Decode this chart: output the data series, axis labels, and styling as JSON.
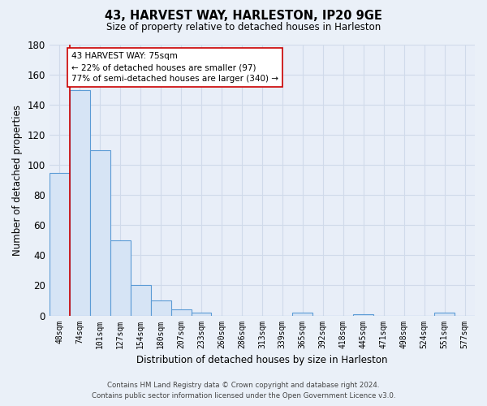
{
  "title": "43, HARVEST WAY, HARLESTON, IP20 9GE",
  "subtitle": "Size of property relative to detached houses in Harleston",
  "xlabel": "Distribution of detached houses by size in Harleston",
  "ylabel": "Number of detached properties",
  "bar_labels": [
    "48sqm",
    "74sqm",
    "101sqm",
    "127sqm",
    "154sqm",
    "180sqm",
    "207sqm",
    "233sqm",
    "260sqm",
    "286sqm",
    "313sqm",
    "339sqm",
    "365sqm",
    "392sqm",
    "418sqm",
    "445sqm",
    "471sqm",
    "498sqm",
    "524sqm",
    "551sqm",
    "577sqm"
  ],
  "bar_heights": [
    95,
    150,
    110,
    50,
    20,
    10,
    4,
    2,
    0,
    0,
    0,
    0,
    2,
    0,
    0,
    1,
    0,
    0,
    0,
    2,
    0
  ],
  "bar_color": "#d6e4f5",
  "bar_edgecolor": "#5b9bd5",
  "vline_color": "#cc0000",
  "annotation_title": "43 HARVEST WAY: 75sqm",
  "annotation_line1": "← 22% of detached houses are smaller (97)",
  "annotation_line2": "77% of semi-detached houses are larger (340) →",
  "annotation_box_color": "#ffffff",
  "annotation_box_edge": "#cc0000",
  "ylim": [
    0,
    180
  ],
  "yticks": [
    0,
    20,
    40,
    60,
    80,
    100,
    120,
    140,
    160,
    180
  ],
  "footer_line1": "Contains HM Land Registry data © Crown copyright and database right 2024.",
  "footer_line2": "Contains public sector information licensed under the Open Government Licence v3.0.",
  "bg_color": "#eaf0f8",
  "grid_color": "#d0daea",
  "plot_bg_color": "#e8eef8"
}
